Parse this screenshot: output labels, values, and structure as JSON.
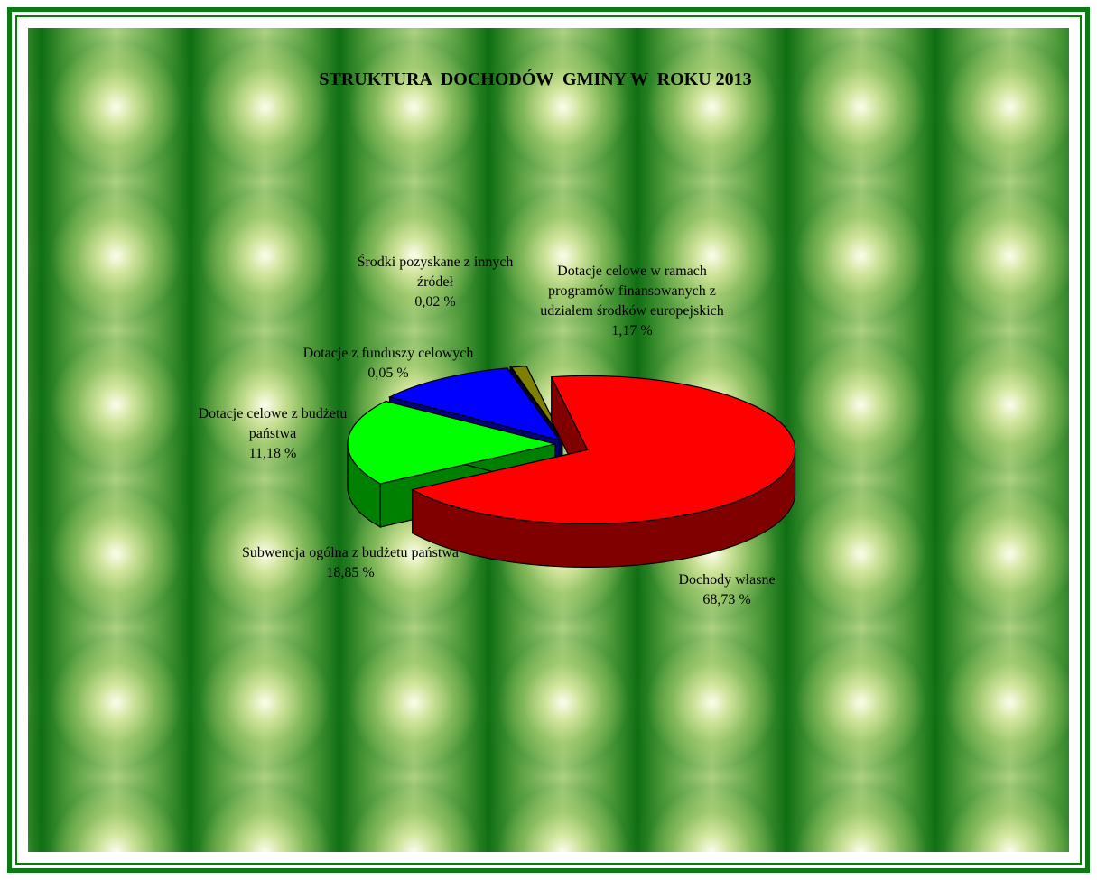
{
  "chart_data": {
    "type": "pie",
    "title": "STRUKTURA  DOCHODÓW  GMINY W  ROKU 2013",
    "categories": [
      "Dochody własne",
      "Subwencja ogólna z budżetu państwa",
      "Dotacje celowe z budżetu państwa",
      "Dotacje z funduszy celowych",
      "Środki pozyskane z innych źródeł",
      "Dotacje  celowe w ramach programów  finansowanych z udziałem  środków europejskich"
    ],
    "values": [
      68.73,
      18.85,
      11.18,
      0.05,
      0.02,
      1.17
    ],
    "value_labels": [
      "68,73 %",
      "18,85 %",
      "11,18 %",
      "0,05 %",
      "0,02 %",
      "1,17 %"
    ],
    "colors": [
      "#ff0000",
      "#00ff00",
      "#0000ff",
      "#000080",
      "#00ffff",
      "#808000"
    ]
  }
}
